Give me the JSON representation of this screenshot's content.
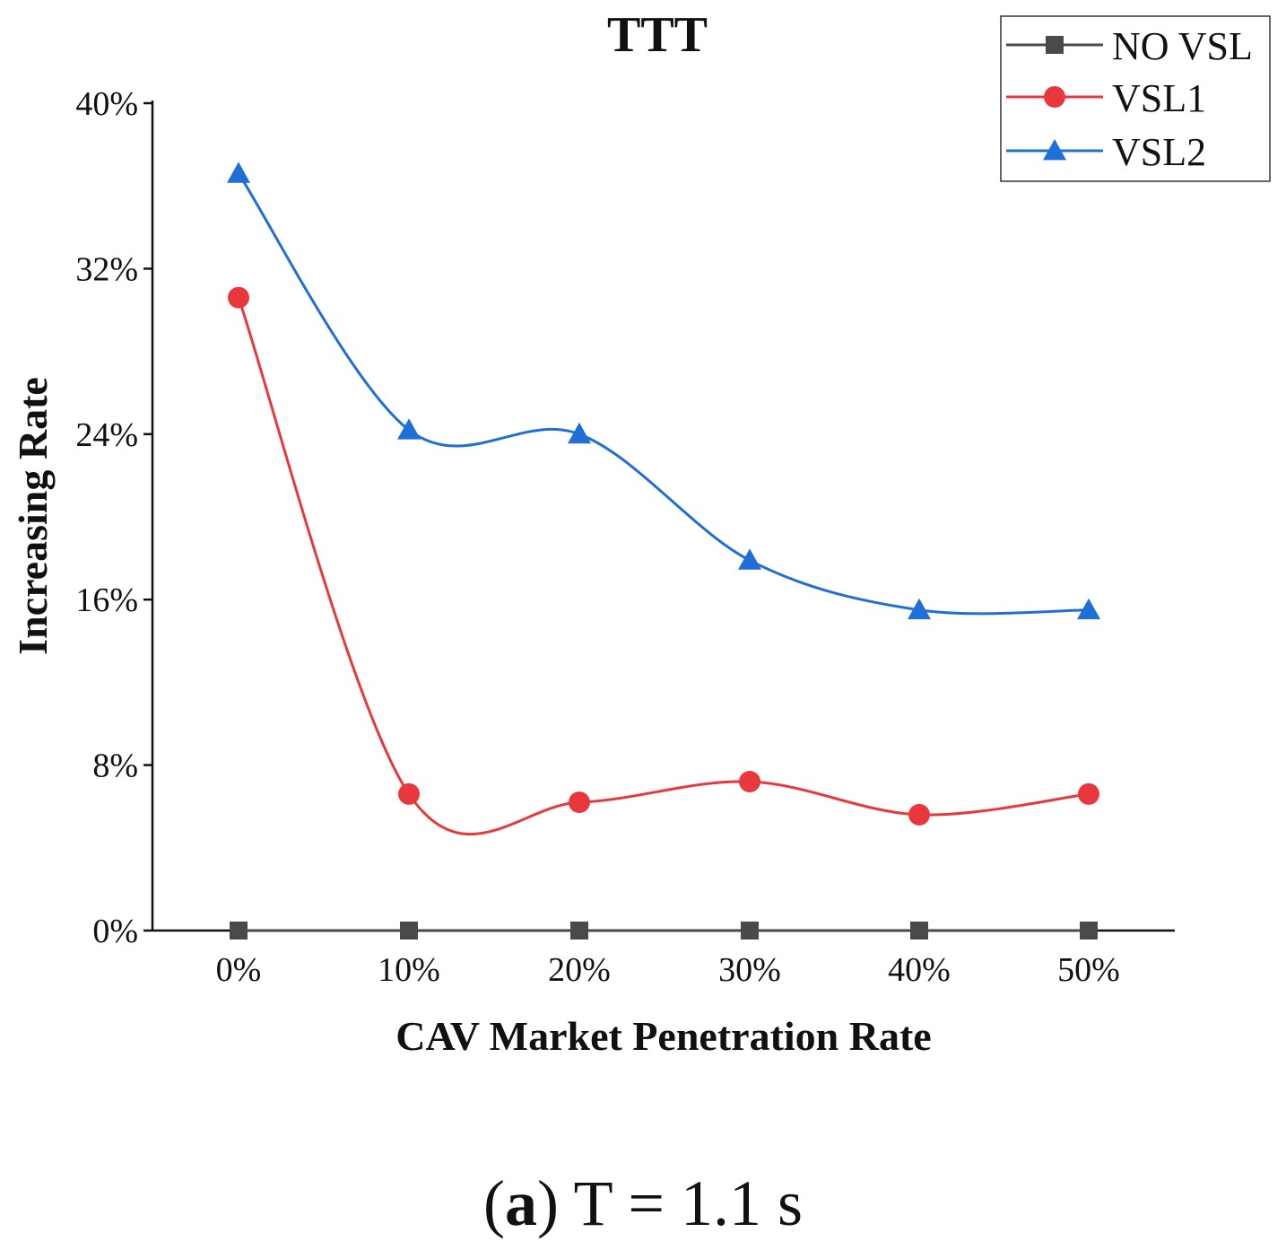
{
  "chart_data": {
    "type": "line",
    "title": "TTT",
    "xlabel": "CAV Market Penetration Rate",
    "ylabel": "Increasing Rate",
    "categories": [
      "0%",
      "10%",
      "20%",
      "30%",
      "40%",
      "50%"
    ],
    "y_ticks": [
      "0%",
      "8%",
      "16%",
      "24%",
      "32%",
      "40%"
    ],
    "ylim": [
      0,
      40
    ],
    "legend_position": "top-right",
    "series": [
      {
        "name": "NO VSL",
        "color": "#4a4a4a",
        "marker": "square",
        "values": [
          0,
          0,
          0,
          0,
          0,
          0
        ]
      },
      {
        "name": "VSL1",
        "color": "#e8383d",
        "marker": "circle",
        "values": [
          30.6,
          6.6,
          6.2,
          7.2,
          5.6,
          6.6
        ]
      },
      {
        "name": "VSL2",
        "color": "#1f6fd6",
        "marker": "triangle",
        "values": [
          36.6,
          24.2,
          24.0,
          17.9,
          15.5,
          15.5
        ]
      }
    ]
  },
  "caption": {
    "prefix_open": "(",
    "label": "a",
    "prefix_close": ")",
    "text": " T = 1.1 s"
  }
}
